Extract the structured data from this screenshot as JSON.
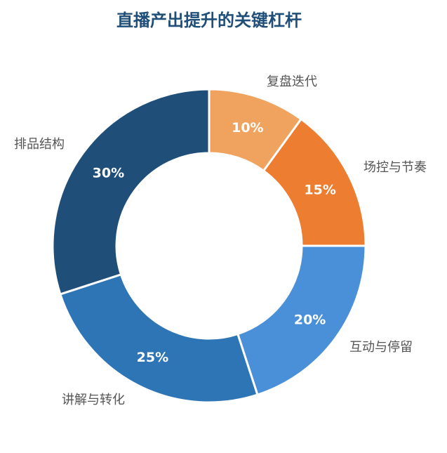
{
  "chart_data": {
    "type": "pie",
    "donut": true,
    "title": "直播产出提升的关键杠杆",
    "categories": [
      "复盘迭代",
      "场控与节奏",
      "互动与停留",
      "讲解与转化",
      "排品结构"
    ],
    "values": [
      10,
      15,
      20,
      25,
      30
    ],
    "data_labels": [
      "10%",
      "15%",
      "20%",
      "25%",
      "30%"
    ],
    "colors": [
      "#f0a35e",
      "#ed7d31",
      "#4a90d9",
      "#2e75b6",
      "#1f4e79"
    ],
    "start_angle_deg": 0,
    "direction": "clockwise",
    "legend": "none"
  }
}
